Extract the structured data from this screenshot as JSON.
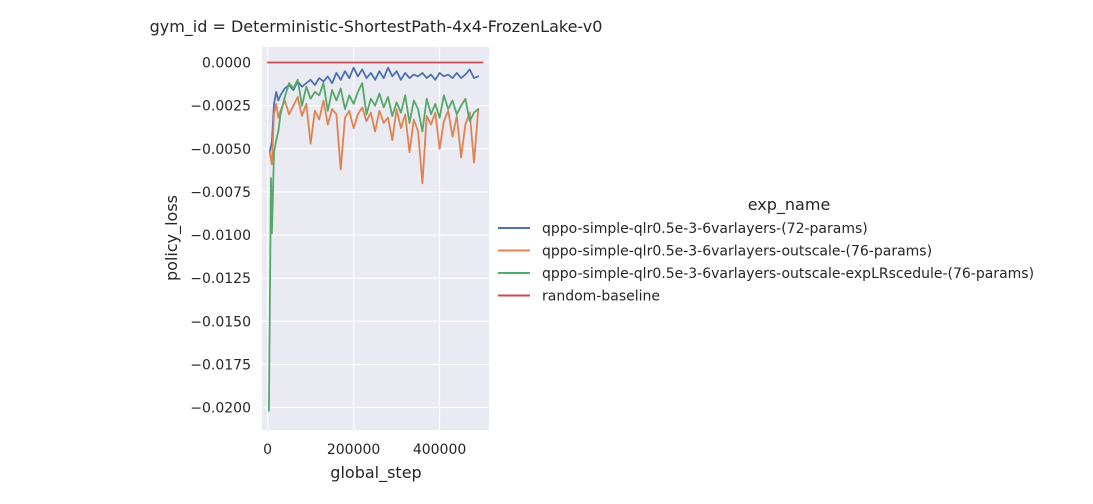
{
  "chart_data": {
    "type": "line",
    "title": "gym_id = Deterministic-ShortestPath-4x4-FrozenLake-v0",
    "xlabel": "global_step",
    "ylabel": "policy_loss",
    "xlim": [
      -13000,
      515000
    ],
    "ylim": [
      -0.0213,
      0.0009
    ],
    "xticks": [
      0,
      200000,
      400000
    ],
    "xtick_labels": [
      "0",
      "200000",
      "400000"
    ],
    "yticks": [
      0.0,
      -0.0025,
      -0.005,
      -0.0075,
      -0.01,
      -0.0125,
      -0.015,
      -0.0175,
      -0.02
    ],
    "ytick_labels": [
      "0.0000",
      "−0.0025",
      "−0.0050",
      "−0.0075",
      "−0.0100",
      "−0.0125",
      "−0.0150",
      "−0.0175",
      "−0.0200"
    ],
    "grid": true,
    "background": "#eaeaf2",
    "legend": {
      "title": "exp_name",
      "placement": "right"
    },
    "series": [
      {
        "name": "qppo-simple-qlr0.5e-3-6varlayers-(72-params)",
        "color": "#4c72b0",
        "x": [
          5000,
          10000,
          15000,
          20000,
          25000,
          30000,
          40000,
          50000,
          60000,
          70000,
          80000,
          90000,
          100000,
          110000,
          120000,
          130000,
          140000,
          150000,
          160000,
          170000,
          180000,
          190000,
          200000,
          210000,
          220000,
          230000,
          240000,
          250000,
          260000,
          270000,
          280000,
          290000,
          300000,
          310000,
          320000,
          330000,
          340000,
          350000,
          360000,
          370000,
          380000,
          390000,
          400000,
          410000,
          420000,
          430000,
          440000,
          450000,
          460000,
          470000,
          480000,
          490000
        ],
        "y": [
          -0.0052,
          -0.0046,
          -0.0024,
          -0.0017,
          -0.0022,
          -0.0019,
          -0.0015,
          -0.0013,
          -0.0016,
          -0.0011,
          -0.0014,
          -0.0012,
          -0.001,
          -0.0013,
          -0.0009,
          -0.0011,
          -0.0008,
          -0.0012,
          -0.0006,
          -0.001,
          -0.0005,
          -0.0009,
          -0.0003,
          -0.0008,
          -0.0004,
          -0.0009,
          -0.0006,
          -0.001,
          -0.0005,
          -0.0009,
          -0.0003,
          -0.0008,
          -0.0005,
          -0.001,
          -0.0006,
          -0.0009,
          -0.0007,
          -0.0008,
          -0.0006,
          -0.0009,
          -0.0007,
          -0.001,
          -0.0006,
          -0.0008,
          -0.0007,
          -0.0009,
          -0.0006,
          -0.0009,
          -0.0007,
          -0.0004,
          -0.0009,
          -0.0008
        ]
      },
      {
        "name": "qppo-simple-qlr0.5e-3-6varlayers-outscale-(76-params)",
        "color": "#dd8452",
        "x": [
          5000,
          10000,
          15000,
          20000,
          25000,
          30000,
          40000,
          50000,
          60000,
          70000,
          80000,
          90000,
          100000,
          110000,
          120000,
          130000,
          140000,
          150000,
          160000,
          170000,
          180000,
          190000,
          200000,
          210000,
          220000,
          230000,
          240000,
          250000,
          260000,
          270000,
          280000,
          290000,
          300000,
          310000,
          320000,
          330000,
          340000,
          350000,
          360000,
          370000,
          380000,
          390000,
          400000,
          410000,
          420000,
          430000,
          440000,
          450000,
          460000,
          470000,
          480000,
          490000
        ],
        "y": [
          -0.0052,
          -0.0059,
          -0.003,
          -0.0024,
          -0.0032,
          -0.0028,
          -0.0022,
          -0.003,
          -0.0025,
          -0.002,
          -0.0031,
          -0.0024,
          -0.0047,
          -0.0028,
          -0.0033,
          -0.0022,
          -0.0036,
          -0.0027,
          -0.003,
          -0.0062,
          -0.0032,
          -0.0028,
          -0.0038,
          -0.003,
          -0.0026,
          -0.0034,
          -0.0029,
          -0.004,
          -0.0028,
          -0.0035,
          -0.0032,
          -0.0045,
          -0.0027,
          -0.0038,
          -0.003,
          -0.0052,
          -0.0033,
          -0.004,
          -0.007,
          -0.0031,
          -0.0036,
          -0.0029,
          -0.005,
          -0.0034,
          -0.0028,
          -0.0043,
          -0.0031,
          -0.0055,
          -0.0036,
          -0.0029,
          -0.0058,
          -0.0027
        ]
      },
      {
        "name": "qppo-simple-qlr0.5e-3-6varlayers-outscale-expLRscedule-(76-params)",
        "color": "#55a868",
        "x": [
          3000,
          5000,
          8000,
          10000,
          15000,
          20000,
          25000,
          30000,
          40000,
          50000,
          60000,
          70000,
          80000,
          90000,
          100000,
          110000,
          120000,
          130000,
          140000,
          150000,
          160000,
          170000,
          180000,
          190000,
          200000,
          210000,
          220000,
          230000,
          240000,
          250000,
          260000,
          270000,
          280000,
          290000,
          300000,
          310000,
          320000,
          330000,
          340000,
          350000,
          360000,
          370000,
          380000,
          390000,
          400000,
          410000,
          420000,
          430000,
          440000,
          450000,
          460000,
          470000,
          480000,
          490000
        ],
        "y": [
          -0.0202,
          -0.015,
          -0.0067,
          -0.0099,
          -0.0052,
          -0.0045,
          -0.004,
          -0.003,
          -0.002,
          -0.0012,
          -0.0015,
          -0.001,
          -0.0025,
          -0.0014,
          -0.0021,
          -0.0017,
          -0.0019,
          -0.0012,
          -0.0028,
          -0.0016,
          -0.0022,
          -0.0015,
          -0.0027,
          -0.0019,
          -0.0024,
          -0.0017,
          -0.0012,
          -0.003,
          -0.0021,
          -0.0025,
          -0.0018,
          -0.0026,
          -0.002,
          -0.0031,
          -0.0023,
          -0.0029,
          -0.0019,
          -0.0035,
          -0.0022,
          -0.0027,
          -0.004,
          -0.0021,
          -0.003,
          -0.0024,
          -0.0032,
          -0.0019,
          -0.0027,
          -0.0022,
          -0.003,
          -0.0025,
          -0.0021,
          -0.0034,
          -0.0029,
          -0.0027
        ]
      },
      {
        "name": "random-baseline",
        "color": "#c44e52",
        "x": [
          0,
          500000
        ],
        "y": [
          0.0,
          0.0
        ]
      }
    ]
  }
}
